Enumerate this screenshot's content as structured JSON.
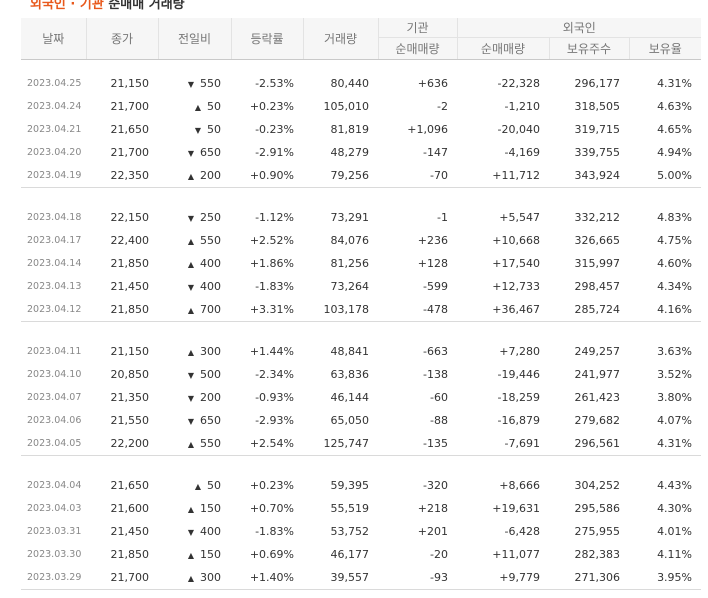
{
  "title": {
    "highlight": "외국인 · 기관",
    "rest": "순매매 거래량"
  },
  "headers": {
    "date": "날짜",
    "close": "종가",
    "diff": "전일비",
    "rate": "등락률",
    "volume": "거래량",
    "inst": "기관",
    "inst_net": "순매매량",
    "foreign": "외국인",
    "foreign_net": "순매매량",
    "foreign_hold": "보유주수",
    "foreign_ratio": "보유율"
  },
  "groups": [
    {
      "rows": [
        {
          "date": "2023.04.25",
          "close": "21,150",
          "dir": "down",
          "diff": "550",
          "rate": "-2.53%",
          "volume": "80,440",
          "inst": "+636",
          "foreign": "-22,328",
          "hold": "296,177",
          "ratio": "4.31%"
        },
        {
          "date": "2023.04.24",
          "close": "21,700",
          "dir": "up",
          "diff": "50",
          "rate": "+0.23%",
          "volume": "105,010",
          "inst": "-2",
          "foreign": "-1,210",
          "hold": "318,505",
          "ratio": "4.63%"
        },
        {
          "date": "2023.04.21",
          "close": "21,650",
          "dir": "down",
          "diff": "50",
          "rate": "-0.23%",
          "volume": "81,819",
          "inst": "+1,096",
          "foreign": "-20,040",
          "hold": "319,715",
          "ratio": "4.65%"
        },
        {
          "date": "2023.04.20",
          "close": "21,700",
          "dir": "down",
          "diff": "650",
          "rate": "-2.91%",
          "volume": "48,279",
          "inst": "-147",
          "foreign": "-4,169",
          "hold": "339,755",
          "ratio": "4.94%"
        },
        {
          "date": "2023.04.19",
          "close": "22,350",
          "dir": "up",
          "diff": "200",
          "rate": "+0.90%",
          "volume": "79,256",
          "inst": "-70",
          "foreign": "+11,712",
          "hold": "343,924",
          "ratio": "5.00%"
        }
      ]
    },
    {
      "rows": [
        {
          "date": "2023.04.18",
          "close": "22,150",
          "dir": "down",
          "diff": "250",
          "rate": "-1.12%",
          "volume": "73,291",
          "inst": "-1",
          "foreign": "+5,547",
          "hold": "332,212",
          "ratio": "4.83%"
        },
        {
          "date": "2023.04.17",
          "close": "22,400",
          "dir": "up",
          "diff": "550",
          "rate": "+2.52%",
          "volume": "84,076",
          "inst": "+236",
          "foreign": "+10,668",
          "hold": "326,665",
          "ratio": "4.75%"
        },
        {
          "date": "2023.04.14",
          "close": "21,850",
          "dir": "up",
          "diff": "400",
          "rate": "+1.86%",
          "volume": "81,256",
          "inst": "+128",
          "foreign": "+17,540",
          "hold": "315,997",
          "ratio": "4.60%"
        },
        {
          "date": "2023.04.13",
          "close": "21,450",
          "dir": "down",
          "diff": "400",
          "rate": "-1.83%",
          "volume": "73,264",
          "inst": "-599",
          "foreign": "+12,733",
          "hold": "298,457",
          "ratio": "4.34%"
        },
        {
          "date": "2023.04.12",
          "close": "21,850",
          "dir": "up",
          "diff": "700",
          "rate": "+3.31%",
          "volume": "103,178",
          "inst": "-478",
          "foreign": "+36,467",
          "hold": "285,724",
          "ratio": "4.16%"
        }
      ]
    },
    {
      "rows": [
        {
          "date": "2023.04.11",
          "close": "21,150",
          "dir": "up",
          "diff": "300",
          "rate": "+1.44%",
          "volume": "48,841",
          "inst": "-663",
          "foreign": "+7,280",
          "hold": "249,257",
          "ratio": "3.63%"
        },
        {
          "date": "2023.04.10",
          "close": "20,850",
          "dir": "down",
          "diff": "500",
          "rate": "-2.34%",
          "volume": "63,836",
          "inst": "-138",
          "foreign": "-19,446",
          "hold": "241,977",
          "ratio": "3.52%"
        },
        {
          "date": "2023.04.07",
          "close": "21,350",
          "dir": "down",
          "diff": "200",
          "rate": "-0.93%",
          "volume": "46,144",
          "inst": "-60",
          "foreign": "-18,259",
          "hold": "261,423",
          "ratio": "3.80%"
        },
        {
          "date": "2023.04.06",
          "close": "21,550",
          "dir": "down",
          "diff": "650",
          "rate": "-2.93%",
          "volume": "65,050",
          "inst": "-88",
          "foreign": "-16,879",
          "hold": "279,682",
          "ratio": "4.07%"
        },
        {
          "date": "2023.04.05",
          "close": "22,200",
          "dir": "up",
          "diff": "550",
          "rate": "+2.54%",
          "volume": "125,747",
          "inst": "-135",
          "foreign": "-7,691",
          "hold": "296,561",
          "ratio": "4.31%"
        }
      ]
    },
    {
      "rows": [
        {
          "date": "2023.04.04",
          "close": "21,650",
          "dir": "up",
          "diff": "50",
          "rate": "+0.23%",
          "volume": "59,395",
          "inst": "-320",
          "foreign": "+8,666",
          "hold": "304,252",
          "ratio": "4.43%"
        },
        {
          "date": "2023.04.03",
          "close": "21,600",
          "dir": "up",
          "diff": "150",
          "rate": "+0.70%",
          "volume": "55,519",
          "inst": "+218",
          "foreign": "+19,631",
          "hold": "295,586",
          "ratio": "4.30%"
        },
        {
          "date": "2023.03.31",
          "close": "21,450",
          "dir": "down",
          "diff": "400",
          "rate": "-1.83%",
          "volume": "53,752",
          "inst": "+201",
          "foreign": "-6,428",
          "hold": "275,955",
          "ratio": "4.01%"
        },
        {
          "date": "2023.03.30",
          "close": "21,850",
          "dir": "up",
          "diff": "150",
          "rate": "+0.69%",
          "volume": "46,177",
          "inst": "-20",
          "foreign": "+11,077",
          "hold": "282,383",
          "ratio": "4.11%"
        },
        {
          "date": "2023.03.29",
          "close": "21,700",
          "dir": "up",
          "diff": "300",
          "rate": "+1.40%",
          "volume": "39,557",
          "inst": "-93",
          "foreign": "+9,779",
          "hold": "271,306",
          "ratio": "3.95%"
        }
      ]
    }
  ],
  "colors": {
    "up": "#d60000",
    "down": "#1a5fd1",
    "title_accent": "#e8581b"
  },
  "icons": {
    "up": "▲",
    "down": "▼"
  }
}
